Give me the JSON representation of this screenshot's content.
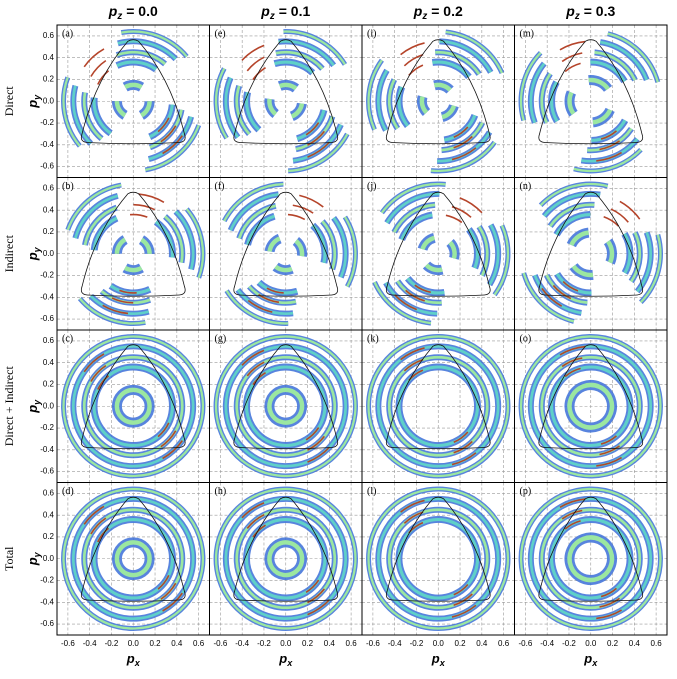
{
  "columns": [
    {
      "var": "p",
      "sub": "z",
      "text": "= 0.0"
    },
    {
      "var": "p",
      "sub": "z",
      "text": "= 0.1"
    },
    {
      "var": "p",
      "sub": "z",
      "text": "= 0.2"
    },
    {
      "var": "p",
      "sub": "z",
      "text": "= 0.3"
    }
  ],
  "rows": [
    "Direct",
    "Indirect",
    "Direct + Indirect",
    "Total"
  ],
  "panels": [
    [
      "(a)",
      "(e)",
      "(i)",
      "(m)"
    ],
    [
      "(b)",
      "(f)",
      "(j)",
      "(n)"
    ],
    [
      "(c)",
      "(g)",
      "(k)",
      "(o)"
    ],
    [
      "(d)",
      "(h)",
      "(l)",
      "(p)"
    ]
  ],
  "axes": {
    "x_label": {
      "var": "p",
      "sub": "x"
    },
    "y_label": {
      "var": "p",
      "sub": "y"
    },
    "range": [
      -0.7,
      0.7
    ],
    "ticks": [
      -0.6,
      -0.4,
      -0.2,
      {
        "value": 0,
        "label": "0.0"
      },
      0.2,
      0.4,
      0.6
    ]
  }
}
